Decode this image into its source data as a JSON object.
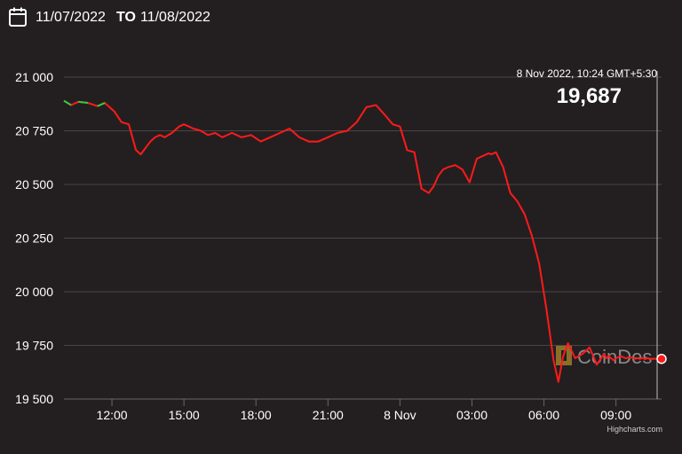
{
  "range": {
    "from": "11/07/2022",
    "separator": "TO",
    "to": "11/08/2022",
    "icon": "calendar-icon"
  },
  "tooltip": {
    "date": "8 Nov 2022, 10:24 GMT+5:30",
    "price": "19,687"
  },
  "watermark": "CoinDes",
  "credits": "Highcharts.com",
  "colors": {
    "background": "#231f20",
    "down": "#ff1a1a",
    "up": "#2ecc40",
    "grid": "#4a4646"
  },
  "chart_data": {
    "type": "line",
    "title": "",
    "xlabel": "",
    "ylabel": "",
    "x_tick_labels": [
      "12:00",
      "15:00",
      "18:00",
      "21:00",
      "8 Nov",
      "03:00",
      "06:00",
      "09:00"
    ],
    "y_tick_labels": [
      "21 000",
      "20 750",
      "20 500",
      "20 250",
      "20 000",
      "19 750",
      "19 500"
    ],
    "ylim": [
      19500,
      21000
    ],
    "x_range_hours": [
      -14.0,
      10.9
    ],
    "grid": true,
    "series": [
      {
        "x": [
          -14.0,
          -13.7,
          -13.4,
          -13.0,
          -12.6,
          -12.3,
          -11.9,
          -11.6,
          -11.3,
          -11.0,
          -10.8,
          -10.6,
          -10.4,
          -10.2,
          -10.0,
          -9.8,
          -9.5,
          -9.2,
          -9.0,
          -8.6,
          -8.3,
          -8.0,
          -7.7,
          -7.4,
          -7.0,
          -6.6,
          -6.2,
          -5.8,
          -5.4,
          -5.0,
          -4.6,
          -4.2,
          -3.8,
          -3.4,
          -3.0,
          -2.6,
          -2.2,
          -1.8,
          -1.4,
          -1.0,
          -0.6,
          -0.3,
          0.0,
          0.3,
          0.6,
          0.9,
          1.2,
          1.4,
          1.6,
          1.8,
          2.0,
          2.3,
          2.6,
          2.9,
          3.2,
          3.4,
          3.6,
          3.7,
          3.8,
          4.0,
          4.3,
          4.6,
          4.9,
          5.2,
          5.5,
          5.8,
          6.1,
          6.4,
          6.6,
          6.8,
          7.0,
          7.3,
          7.6,
          7.9,
          8.2,
          8.5,
          8.6,
          8.7,
          8.9,
          9.0,
          9.2,
          9.4,
          9.6,
          9.8,
          9.9,
          10.0,
          10.1,
          10.2,
          10.3,
          10.4,
          10.5,
          10.7,
          10.9
        ],
        "y": [
          20890,
          20870,
          20885,
          20880,
          20865,
          20880,
          20840,
          20790,
          20780,
          20660,
          20640,
          20670,
          20700,
          20720,
          20730,
          20720,
          20740,
          20770,
          20780,
          20760,
          20750,
          20730,
          20740,
          20720,
          20740,
          20720,
          20730,
          20700,
          20720,
          20740,
          20760,
          20720,
          20700,
          20700,
          20720,
          20740,
          20750,
          20790,
          20860,
          20870,
          20820,
          20780,
          20770,
          20660,
          20650,
          20480,
          20460,
          20490,
          20540,
          20570,
          20580,
          20590,
          20570,
          20510,
          20620,
          20630,
          20640,
          20645,
          20640,
          20650,
          20580,
          20460,
          20420,
          20360,
          20260,
          20130,
          19920,
          19680,
          19580,
          19700,
          19760,
          19690,
          19710,
          19740,
          19660,
          19710,
          19690,
          19700,
          19680,
          19690,
          19700,
          19690,
          19695,
          19688,
          19690,
          19687,
          19692,
          19686,
          19690,
          19687,
          19688,
          19687,
          19687
        ]
      }
    ],
    "last_value": 19687
  }
}
